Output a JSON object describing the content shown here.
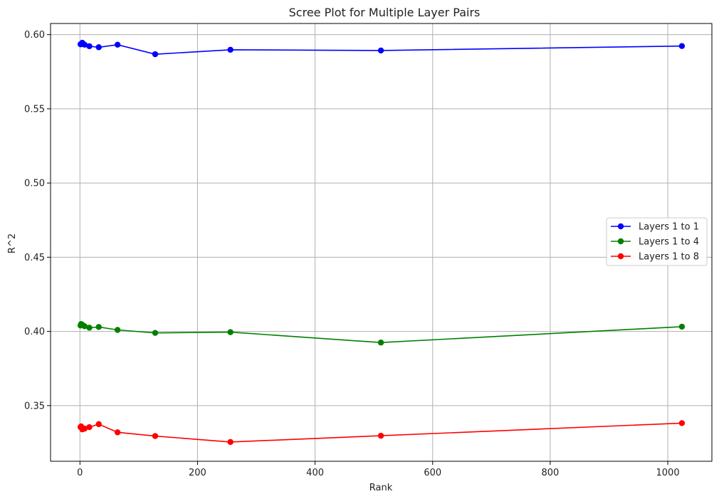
{
  "chart_data": {
    "type": "line",
    "title": "Scree Plot for Multiple Layer Pairs",
    "xlabel": "Rank",
    "ylabel": "R^2",
    "xlim": [
      -50,
      1075
    ],
    "ylim": [
      0.3125,
      0.6075
    ],
    "xticks": [
      0,
      200,
      400,
      600,
      800,
      1000
    ],
    "xtick_labels": [
      "0",
      "200",
      "400",
      "600",
      "800",
      "1000"
    ],
    "yticks": [
      0.35,
      0.4,
      0.45,
      0.5,
      0.55,
      0.6
    ],
    "ytick_labels": [
      "0.35",
      "0.40",
      "0.45",
      "0.50",
      "0.55",
      "0.60"
    ],
    "grid": true,
    "legend_position": "center-right",
    "x": [
      1,
      2,
      4,
      8,
      16,
      32,
      64,
      128,
      256,
      512,
      1024
    ],
    "series": [
      {
        "name": "Layers 1 to 1",
        "color": "#0000ff",
        "values": [
          0.5935,
          0.5935,
          0.5945,
          0.5932,
          0.5922,
          0.5915,
          0.5932,
          0.5868,
          0.5898,
          0.5893,
          0.5923
        ]
      },
      {
        "name": "Layers 1 to 4",
        "color": "#008000",
        "values": [
          0.404,
          0.405,
          0.4045,
          0.4035,
          0.4025,
          0.403,
          0.401,
          0.399,
          0.3995,
          0.3925,
          0.4032
        ]
      },
      {
        "name": "Layers 1 to 8",
        "color": "#ff0000",
        "values": [
          0.3355,
          0.336,
          0.334,
          0.3345,
          0.3355,
          0.3375,
          0.332,
          0.3295,
          0.3255,
          0.3297,
          0.3382
        ]
      }
    ]
  }
}
